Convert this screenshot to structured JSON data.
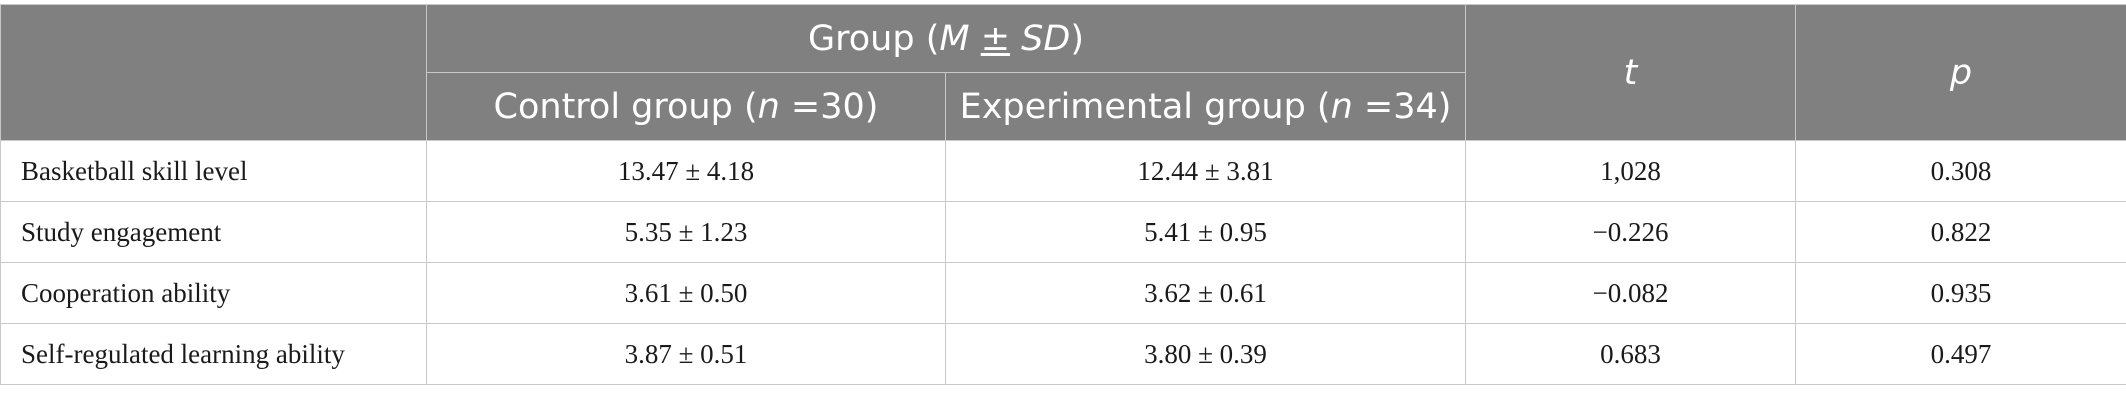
{
  "header": {
    "group_prefix": "Group (",
    "group_m": "M",
    "group_pm": "±",
    "group_sd": "SD",
    "group_suffix": ")",
    "control_prefix": "Control group (",
    "control_n": "n",
    "control_suffix": " =30)",
    "experimental_prefix": "Experimental group (",
    "experimental_n": "n",
    "experimental_suffix": " =34)",
    "t_label": "t",
    "p_label": "p"
  },
  "rows": [
    {
      "label": "Basketball skill level",
      "control": "13.47 ± 4.18",
      "experimental": "12.44 ± 3.81",
      "t": "1,028",
      "p": "0.308"
    },
    {
      "label": "Study engagement",
      "control": "5.35 ± 1.23",
      "experimental": "5.41 ± 0.95",
      "t": "−0.226",
      "p": "0.822"
    },
    {
      "label": "Cooperation ability",
      "control": "3.61 ± 0.50",
      "experimental": "3.62 ± 0.61",
      "t": "−0.082",
      "p": "0.935"
    },
    {
      "label": "Self-regulated learning ability",
      "control": "3.87 ± 0.51",
      "experimental": "3.80 ± 0.39",
      "t": "0.683",
      "p": "0.497"
    }
  ],
  "colors": {
    "header_bg": "#808080",
    "header_text": "#ffffff",
    "border": "#c8c8c8",
    "body_text": "#1a1a1a"
  }
}
